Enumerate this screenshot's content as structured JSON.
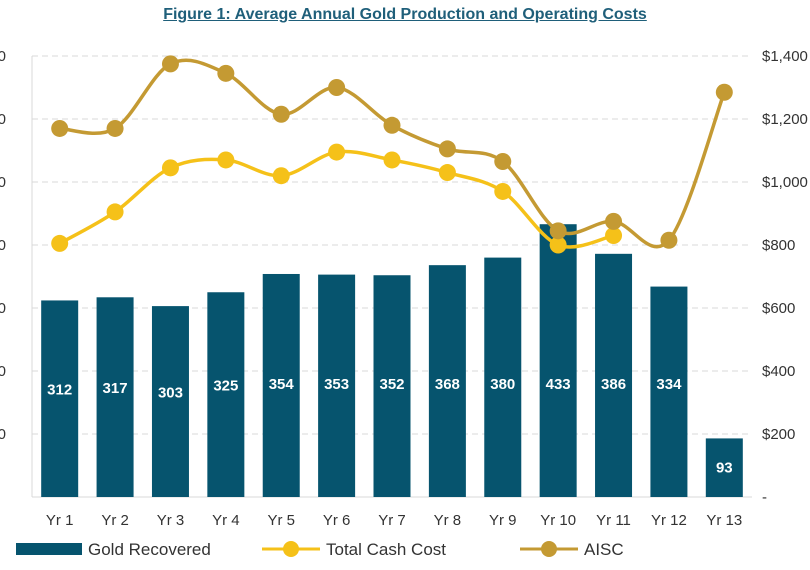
{
  "title": "Figure 1: Average Annual Gold Production and Operating Costs",
  "colors": {
    "bars": "#06546e",
    "cash": "#f5c119",
    "aisc": "#c49a33",
    "grid": "#d9d9d9",
    "title": "#1f5f7a"
  },
  "chart_data": {
    "type": "bar+line",
    "title": "Figure 1: Average Annual Gold Production and Operating Costs",
    "categories": [
      "Yr 1",
      "Yr 2",
      "Yr 3",
      "Yr 4",
      "Yr 5",
      "Yr 6",
      "Yr 7",
      "Yr 8",
      "Yr 9",
      "Yr 10",
      "Yr 11",
      "Yr 12",
      "Yr 13"
    ],
    "left_axis": {
      "ylim": [
        0,
        700
      ],
      "tick_labels": [
        "",
        "0",
        "0",
        "0",
        "0",
        "0",
        "0",
        "0"
      ]
    },
    "right_axis": {
      "ylim": [
        0,
        1400
      ],
      "tick_labels": [
        "-",
        "$200",
        "$400",
        "$600",
        "$800",
        "$1,000",
        "$1,200",
        "$1,400"
      ]
    },
    "grid": true,
    "legend_position": "bottom",
    "series": [
      {
        "name": "Gold Recovered",
        "type": "bar",
        "axis": "left",
        "values": [
          312,
          317,
          303,
          325,
          354,
          353,
          352,
          368,
          380,
          433,
          386,
          334,
          93
        ],
        "labels": [
          "312",
          "317",
          "303",
          "325",
          "354",
          "353",
          "352",
          "368",
          "380",
          "433",
          "386",
          "334",
          "93"
        ]
      },
      {
        "name": "Total Cash Cost",
        "type": "line",
        "axis": "right",
        "values": [
          805,
          905,
          1045,
          1070,
          1020,
          1095,
          1070,
          1030,
          970,
          800,
          830,
          null,
          null
        ]
      },
      {
        "name": "AISC",
        "type": "line",
        "axis": "right",
        "values": [
          1170,
          1170,
          1375,
          1345,
          1215,
          1300,
          1180,
          1105,
          1065,
          845,
          875,
          815,
          1285
        ]
      }
    ]
  }
}
